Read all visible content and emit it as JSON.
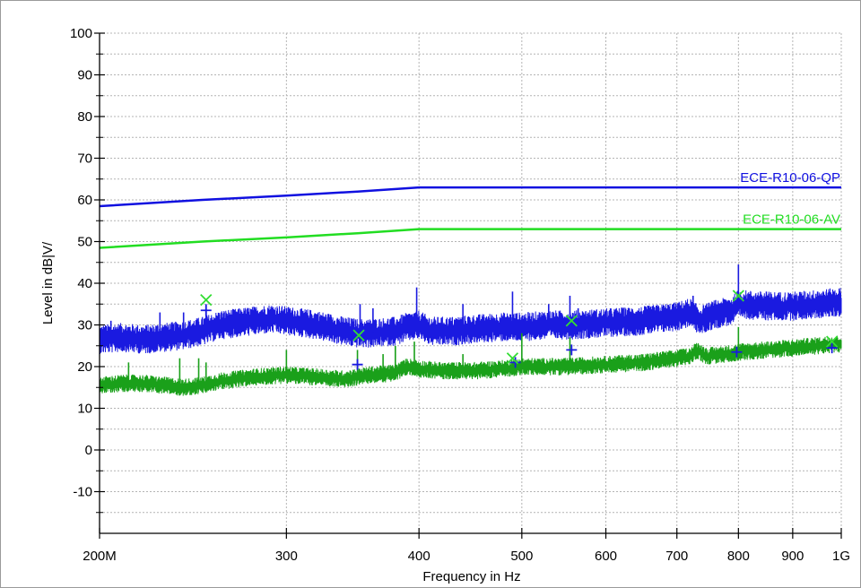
{
  "chart_data": {
    "type": "line",
    "xlabel": "Frequency in Hz",
    "ylabel": "Level in dB|V/",
    "x_scale": "log",
    "xlim": [
      200,
      1000
    ],
    "ylim": [
      -20,
      100
    ],
    "x_ticks": [
      200,
      300,
      400,
      500,
      600,
      700,
      800,
      900,
      1000
    ],
    "x_tick_labels": [
      "200M",
      "300",
      "400",
      "500",
      "600",
      "700",
      "800",
      "900",
      "1G"
    ],
    "y_ticks": [
      -10,
      0,
      10,
      20,
      30,
      40,
      50,
      60,
      70,
      80,
      90,
      100
    ],
    "y_tick_labels": [
      "-10",
      "0",
      "10",
      "20",
      "30",
      "40",
      "50",
      "60",
      "70",
      "80",
      "90",
      "100"
    ],
    "grid": true,
    "limit_lines": [
      {
        "name": "ECE-R10-06-QP",
        "color": "#1010e0",
        "points": [
          [
            200,
            58.5
          ],
          [
            250,
            60.0
          ],
          [
            300,
            61.0
          ],
          [
            350,
            62.0
          ],
          [
            400,
            63.0
          ],
          [
            1000,
            63.0
          ]
        ]
      },
      {
        "name": "ECE-R10-06-AV",
        "color": "#22dd22",
        "points": [
          [
            200,
            48.5
          ],
          [
            250,
            50.0
          ],
          [
            300,
            51.0
          ],
          [
            350,
            52.0
          ],
          [
            400,
            53.0
          ],
          [
            1000,
            53.0
          ]
        ]
      }
    ],
    "series": [
      {
        "color": "#1a1ae0",
        "points": [
          [
            200,
            26.5
          ],
          [
            210,
            27
          ],
          [
            220,
            26.5
          ],
          [
            230,
            27
          ],
          [
            240,
            27.5
          ],
          [
            250,
            28.5
          ],
          [
            260,
            30
          ],
          [
            270,
            30.5
          ],
          [
            280,
            31
          ],
          [
            290,
            31.5
          ],
          [
            300,
            31
          ],
          [
            320,
            30
          ],
          [
            340,
            28.5
          ],
          [
            350,
            28
          ],
          [
            360,
            28
          ],
          [
            380,
            28.5
          ],
          [
            390,
            29.5
          ],
          [
            400,
            30
          ],
          [
            410,
            28.5
          ],
          [
            430,
            28.5
          ],
          [
            450,
            29
          ],
          [
            480,
            29.5
          ],
          [
            500,
            29.5
          ],
          [
            530,
            30
          ],
          [
            560,
            30
          ],
          [
            600,
            30.5
          ],
          [
            650,
            31
          ],
          [
            700,
            32
          ],
          [
            720,
            33
          ],
          [
            735,
            31
          ],
          [
            760,
            32.5
          ],
          [
            790,
            33.5
          ],
          [
            800,
            35
          ],
          [
            850,
            34.5
          ],
          [
            900,
            34.5
          ],
          [
            950,
            35
          ],
          [
            1000,
            35.5
          ]
        ],
        "band": 2.5,
        "spikes": [
          [
            205,
            31
          ],
          [
            228,
            33
          ],
          [
            240,
            33
          ],
          [
            252,
            35
          ],
          [
            300,
            34
          ],
          [
            352,
            35
          ],
          [
            362,
            34
          ],
          [
            398,
            39
          ],
          [
            440,
            35
          ],
          [
            490,
            38
          ],
          [
            530,
            35
          ],
          [
            555,
            37
          ],
          [
            565,
            34
          ],
          [
            600,
            33
          ],
          [
            630,
            34
          ],
          [
            725,
            37
          ],
          [
            800,
            44.5
          ],
          [
            850,
            38
          ],
          [
            950,
            38
          ]
        ]
      },
      {
        "color": "#1aa01a",
        "points": [
          [
            200,
            15.5
          ],
          [
            210,
            16
          ],
          [
            220,
            16
          ],
          [
            230,
            15.5
          ],
          [
            240,
            15
          ],
          [
            250,
            15.5
          ],
          [
            260,
            16.5
          ],
          [
            280,
            17.5
          ],
          [
            300,
            18
          ],
          [
            320,
            17.5
          ],
          [
            340,
            17
          ],
          [
            360,
            18
          ],
          [
            380,
            18.5
          ],
          [
            390,
            20
          ],
          [
            400,
            19.5
          ],
          [
            420,
            19
          ],
          [
            450,
            19
          ],
          [
            480,
            19.5
          ],
          [
            500,
            20
          ],
          [
            550,
            20
          ],
          [
            600,
            20.5
          ],
          [
            650,
            21
          ],
          [
            700,
            22
          ],
          [
            720,
            22.5
          ],
          [
            732,
            24
          ],
          [
            745,
            22.5
          ],
          [
            780,
            23
          ],
          [
            800,
            23.5
          ],
          [
            850,
            24
          ],
          [
            900,
            24.5
          ],
          [
            950,
            25
          ],
          [
            1000,
            25.5
          ]
        ],
        "band": 1.5,
        "spikes": [
          [
            213,
            21
          ],
          [
            238,
            22
          ],
          [
            248,
            22
          ],
          [
            252,
            21
          ],
          [
            300,
            24
          ],
          [
            350,
            24
          ],
          [
            370,
            23
          ],
          [
            380,
            25
          ],
          [
            396,
            26
          ],
          [
            440,
            23
          ],
          [
            500,
            28
          ],
          [
            555,
            27
          ],
          [
            735,
            25
          ],
          [
            800,
            29.5
          ]
        ]
      }
    ],
    "peak_markers": [
      {
        "type": "plus",
        "color": "#1a1ae0",
        "points": [
          [
            252,
            33.5
          ],
          [
            350,
            20.5
          ],
          [
            493,
            21
          ],
          [
            557,
            24
          ],
          [
            797,
            23.5
          ],
          [
            980,
            24.5
          ]
        ]
      },
      {
        "type": "cross",
        "color": "#33dd33",
        "points": [
          [
            252,
            36
          ],
          [
            351,
            27.5
          ],
          [
            490,
            22
          ],
          [
            557,
            31
          ],
          [
            800,
            37
          ],
          [
            980,
            26
          ]
        ]
      }
    ]
  }
}
